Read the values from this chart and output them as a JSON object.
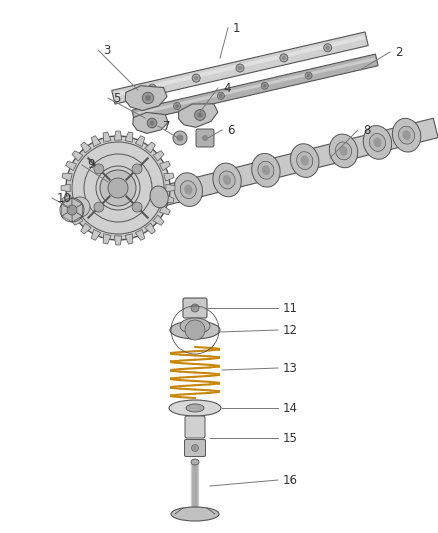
{
  "background_color": "#ffffff",
  "fig_width": 4.38,
  "fig_height": 5.33,
  "dpi": 100,
  "gray_light": "#d0d0d0",
  "gray_mid": "#b0b0b0",
  "gray_dark": "#888888",
  "edge_color": "#555555",
  "spring_color": "#c8860a",
  "label_color": "#444444",
  "label_fontsize": 8.5
}
